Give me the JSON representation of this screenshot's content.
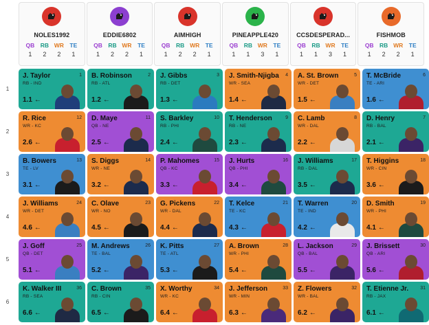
{
  "positions": [
    "QB",
    "RB",
    "WR",
    "TE"
  ],
  "teams": [
    {
      "name": "NOLES1992",
      "logo_color": "#d9342b",
      "logo_icon": "dog-shield-icon",
      "counts": [
        "1",
        "2",
        "2",
        "1"
      ]
    },
    {
      "name": "EDDIE6802",
      "logo_color": "#8c3fd0",
      "logo_icon": "dog-icon",
      "counts": [
        "1",
        "2",
        "2",
        "1"
      ]
    },
    {
      "name": "AIMHIGH",
      "logo_color": "#d9342b",
      "logo_icon": "dog-shield-icon",
      "counts": [
        "1",
        "2",
        "2",
        "1"
      ]
    },
    {
      "name": "PINEAPPLE420",
      "logo_color": "#2bb34a",
      "logo_icon": "dog-icon",
      "counts": [
        "1",
        "1",
        "3",
        "1"
      ]
    },
    {
      "name": "CCSDESPERAD...",
      "logo_color": "#d9342b",
      "logo_icon": "dog-shield-icon",
      "counts": [
        "1",
        "1",
        "3",
        "1"
      ]
    },
    {
      "name": "FISHMOB",
      "logo_color": "#e86a2a",
      "logo_icon": "dog-icon",
      "counts": [
        "1",
        "2",
        "2",
        "1"
      ]
    }
  ],
  "rounds": [
    "1",
    "2",
    "3",
    "4",
    "5",
    "6"
  ],
  "picks": [
    {
      "name": "J. Taylor",
      "meta": "RB - IND",
      "pick": "1",
      "adp": "1.1",
      "pos": "RB",
      "jersey": "#1f3e7a"
    },
    {
      "name": "B. Robinson",
      "meta": "RB - ATL",
      "pick": "2",
      "adp": "1.2",
      "pos": "RB",
      "jersey": "#1b1b1b"
    },
    {
      "name": "J. Gibbs",
      "meta": "RB - DET",
      "pick": "3",
      "adp": "1.3",
      "pos": "RB",
      "jersey": "#2b7bbf"
    },
    {
      "name": "J. Smith-Njigba",
      "meta": "WR - SEA",
      "pick": "4",
      "adp": "1.4",
      "pos": "WR",
      "jersey": "#1f2a44"
    },
    {
      "name": "A. St. Brown",
      "meta": "WR - DET",
      "pick": "5",
      "adp": "1.5",
      "pos": "WR",
      "jersey": "#3a7fc1"
    },
    {
      "name": "T. McBride",
      "meta": "TE - ARI",
      "pick": "6",
      "adp": "1.6",
      "pos": "TE",
      "jersey": "#b01e2e"
    },
    {
      "name": "R. Rice",
      "meta": "WR - KC",
      "pick": "12",
      "adp": "2.6",
      "pos": "WR",
      "jersey": "#c8202e"
    },
    {
      "name": "D. Maye",
      "meta": "QB - NE",
      "pick": "11",
      "adp": "2.5",
      "pos": "QB",
      "jersey": "#1c2b4c"
    },
    {
      "name": "S. Barkley",
      "meta": "RB - PHI",
      "pick": "10",
      "adp": "2.4",
      "pos": "RB",
      "jersey": "#1f4a3f"
    },
    {
      "name": "T. Henderson",
      "meta": "RB - NE",
      "pick": "9",
      "adp": "2.3",
      "pos": "RB",
      "jersey": "#1c2b4c"
    },
    {
      "name": "C. Lamb",
      "meta": "WR - DAL",
      "pick": "8",
      "adp": "2.2",
      "pos": "WR",
      "jersey": "#d7d7d7"
    },
    {
      "name": "D. Henry",
      "meta": "RB - BAL",
      "pick": "7",
      "adp": "2.1",
      "pos": "RB",
      "jersey": "#3b2466"
    },
    {
      "name": "B. Bowers",
      "meta": "TE - LV",
      "pick": "13",
      "adp": "3.1",
      "pos": "TE",
      "jersey": "#1b1b1b"
    },
    {
      "name": "S. Diggs",
      "meta": "WR - NE",
      "pick": "14",
      "adp": "3.2",
      "pos": "WR",
      "jersey": "#1c2b4c"
    },
    {
      "name": "P. Mahomes",
      "meta": "QB - KC",
      "pick": "15",
      "adp": "3.3",
      "pos": "QB",
      "jersey": "#c8202e"
    },
    {
      "name": "J. Hurts",
      "meta": "QB - PHI",
      "pick": "16",
      "adp": "3.4",
      "pos": "QB",
      "jersey": "#1f4a3f"
    },
    {
      "name": "J. Williams",
      "meta": "RB - DAL",
      "pick": "17",
      "adp": "3.5",
      "pos": "RB",
      "jersey": "#1c2b4c"
    },
    {
      "name": "T. Higgins",
      "meta": "WR - CIN",
      "pick": "18",
      "adp": "3.6",
      "pos": "WR",
      "jersey": "#1b1b1b"
    },
    {
      "name": "J. Williams",
      "meta": "WR - DET",
      "pick": "24",
      "adp": "4.6",
      "pos": "WR",
      "jersey": "#3a7fc1"
    },
    {
      "name": "C. Olave",
      "meta": "WR - NO",
      "pick": "23",
      "adp": "4.5",
      "pos": "WR",
      "jersey": "#1b1b1b"
    },
    {
      "name": "G. Pickens",
      "meta": "WR - DAL",
      "pick": "22",
      "adp": "4.4",
      "pos": "WR",
      "jersey": "#1c2b4c"
    },
    {
      "name": "T. Kelce",
      "meta": "TE - KC",
      "pick": "21",
      "adp": "4.3",
      "pos": "TE",
      "jersey": "#c8202e"
    },
    {
      "name": "T. Warren",
      "meta": "TE - IND",
      "pick": "20",
      "adp": "4.2",
      "pos": "TE",
      "jersey": "#e9e9e9"
    },
    {
      "name": "D. Smith",
      "meta": "WR - PHI",
      "pick": "19",
      "adp": "4.1",
      "pos": "WR",
      "jersey": "#1f4a3f"
    },
    {
      "name": "J. Goff",
      "meta": "QB - DET",
      "pick": "25",
      "adp": "5.1",
      "pos": "QB",
      "jersey": "#3a7fc1"
    },
    {
      "name": "M. Andrews",
      "meta": "TE - BAL",
      "pick": "26",
      "adp": "5.2",
      "pos": "TE",
      "jersey": "#3b2466"
    },
    {
      "name": "K. Pitts",
      "meta": "TE - ATL",
      "pick": "27",
      "adp": "5.3",
      "pos": "TE",
      "jersey": "#1b1b1b"
    },
    {
      "name": "A. Brown",
      "meta": "WR - PHI",
      "pick": "28",
      "adp": "5.4",
      "pos": "WR",
      "jersey": "#1f4a3f"
    },
    {
      "name": "L. Jackson",
      "meta": "QB - BAL",
      "pick": "29",
      "adp": "5.5",
      "pos": "QB",
      "jersey": "#3b2466"
    },
    {
      "name": "J. Brissett",
      "meta": "QB - ARI",
      "pick": "30",
      "adp": "5.6",
      "pos": "QB",
      "jersey": "#b01e2e"
    },
    {
      "name": "K. Walker III",
      "meta": "RB - SEA",
      "pick": "36",
      "adp": "6.6",
      "pos": "RB",
      "jersey": "#1f2a44"
    },
    {
      "name": "C. Brown",
      "meta": "RB - CIN",
      "pick": "35",
      "adp": "6.5",
      "pos": "RB",
      "jersey": "#1b1b1b"
    },
    {
      "name": "X. Worthy",
      "meta": "WR - KC",
      "pick": "34",
      "adp": "6.4",
      "pos": "WR",
      "jersey": "#c8202e"
    },
    {
      "name": "J. Jefferson",
      "meta": "WR - MIN",
      "pick": "33",
      "adp": "6.3",
      "pos": "WR",
      "jersey": "#4a2a7a"
    },
    {
      "name": "Z. Flowers",
      "meta": "WR - BAL",
      "pick": "32",
      "adp": "6.2",
      "pos": "WR",
      "jersey": "#3b2466"
    },
    {
      "name": "T. Etienne Jr.",
      "meta": "RB - JAX",
      "pick": "31",
      "adp": "6.1",
      "pos": "RB",
      "jersey": "#106a73"
    }
  ]
}
